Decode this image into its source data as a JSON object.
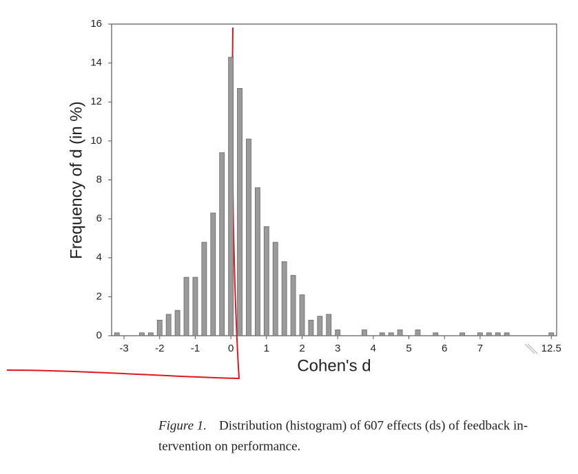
{
  "chart_data": {
    "type": "bar",
    "x_label": "Cohen's d",
    "y_label": "Frequency of d (in %)",
    "x": [
      -3.2,
      -2.5,
      -2.25,
      -2,
      -1.75,
      -1.5,
      -1.25,
      -1,
      -0.75,
      -0.5,
      -0.25,
      0,
      0.25,
      0.5,
      0.75,
      1,
      1.25,
      1.5,
      1.75,
      2,
      2.25,
      2.5,
      2.75,
      3,
      3.75,
      4.25,
      4.5,
      4.75,
      5.25,
      5.75,
      6.5,
      7,
      7.25,
      7.5,
      7.75,
      12.5
    ],
    "values": [
      0.15,
      0.15,
      0.15,
      0.8,
      1.1,
      1.3,
      3.0,
      3.0,
      4.8,
      6.3,
      9.4,
      14.3,
      12.7,
      10.1,
      7.6,
      5.6,
      4.8,
      3.8,
      3.1,
      2.1,
      0.8,
      1.0,
      1.1,
      0.3,
      0.3,
      0.15,
      0.15,
      0.3,
      0.3,
      0.15,
      0.15,
      0.15,
      0.15,
      0.15,
      0.15,
      0.15
    ],
    "color": "#9a9a9a",
    "xlim": [
      -3.35,
      12.65
    ],
    "x_break": [
      8.5,
      12
    ],
    "xticks": [
      -3,
      -2,
      -1,
      0,
      1,
      2,
      3,
      4,
      5,
      6,
      7,
      12.5
    ],
    "ylim": [
      0,
      16
    ],
    "yticks": [
      0,
      2,
      4,
      6,
      8,
      10,
      12,
      14,
      16
    ],
    "grid": false
  },
  "caption": {
    "label": "Figure 1.",
    "lines": [
      "Distribution (histogram) of 607 effects (ds) of feedback in-",
      "tervention on performance."
    ]
  }
}
